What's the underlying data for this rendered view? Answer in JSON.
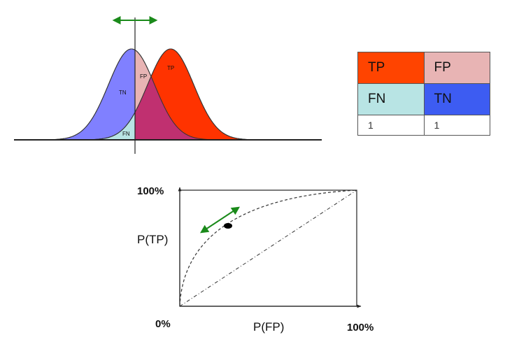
{
  "colors": {
    "tp": "#ff4400",
    "fp": "#e8b4b4",
    "fn": "#b8e4e4",
    "tn": "#3d5cf2",
    "tn_curve": "#8080ff",
    "tp_curve": "#ff3300",
    "overlap": "#c03070",
    "threshold_arrow": "#1a8a1a"
  },
  "distribution": {
    "tn_label": "TN",
    "fp_label": "FP",
    "fn_label": "FN",
    "tp_label": "TP"
  },
  "confusion_matrix": {
    "row1": [
      "TP",
      "FP"
    ],
    "row2": [
      "FN",
      "TN"
    ],
    "row3": [
      "1",
      "1"
    ]
  },
  "roc": {
    "y_top_label": "100%",
    "y_axis_label": "P(TP)",
    "origin_label": "0%",
    "x_axis_label": "P(FP)",
    "x_right_label": "100%"
  }
}
